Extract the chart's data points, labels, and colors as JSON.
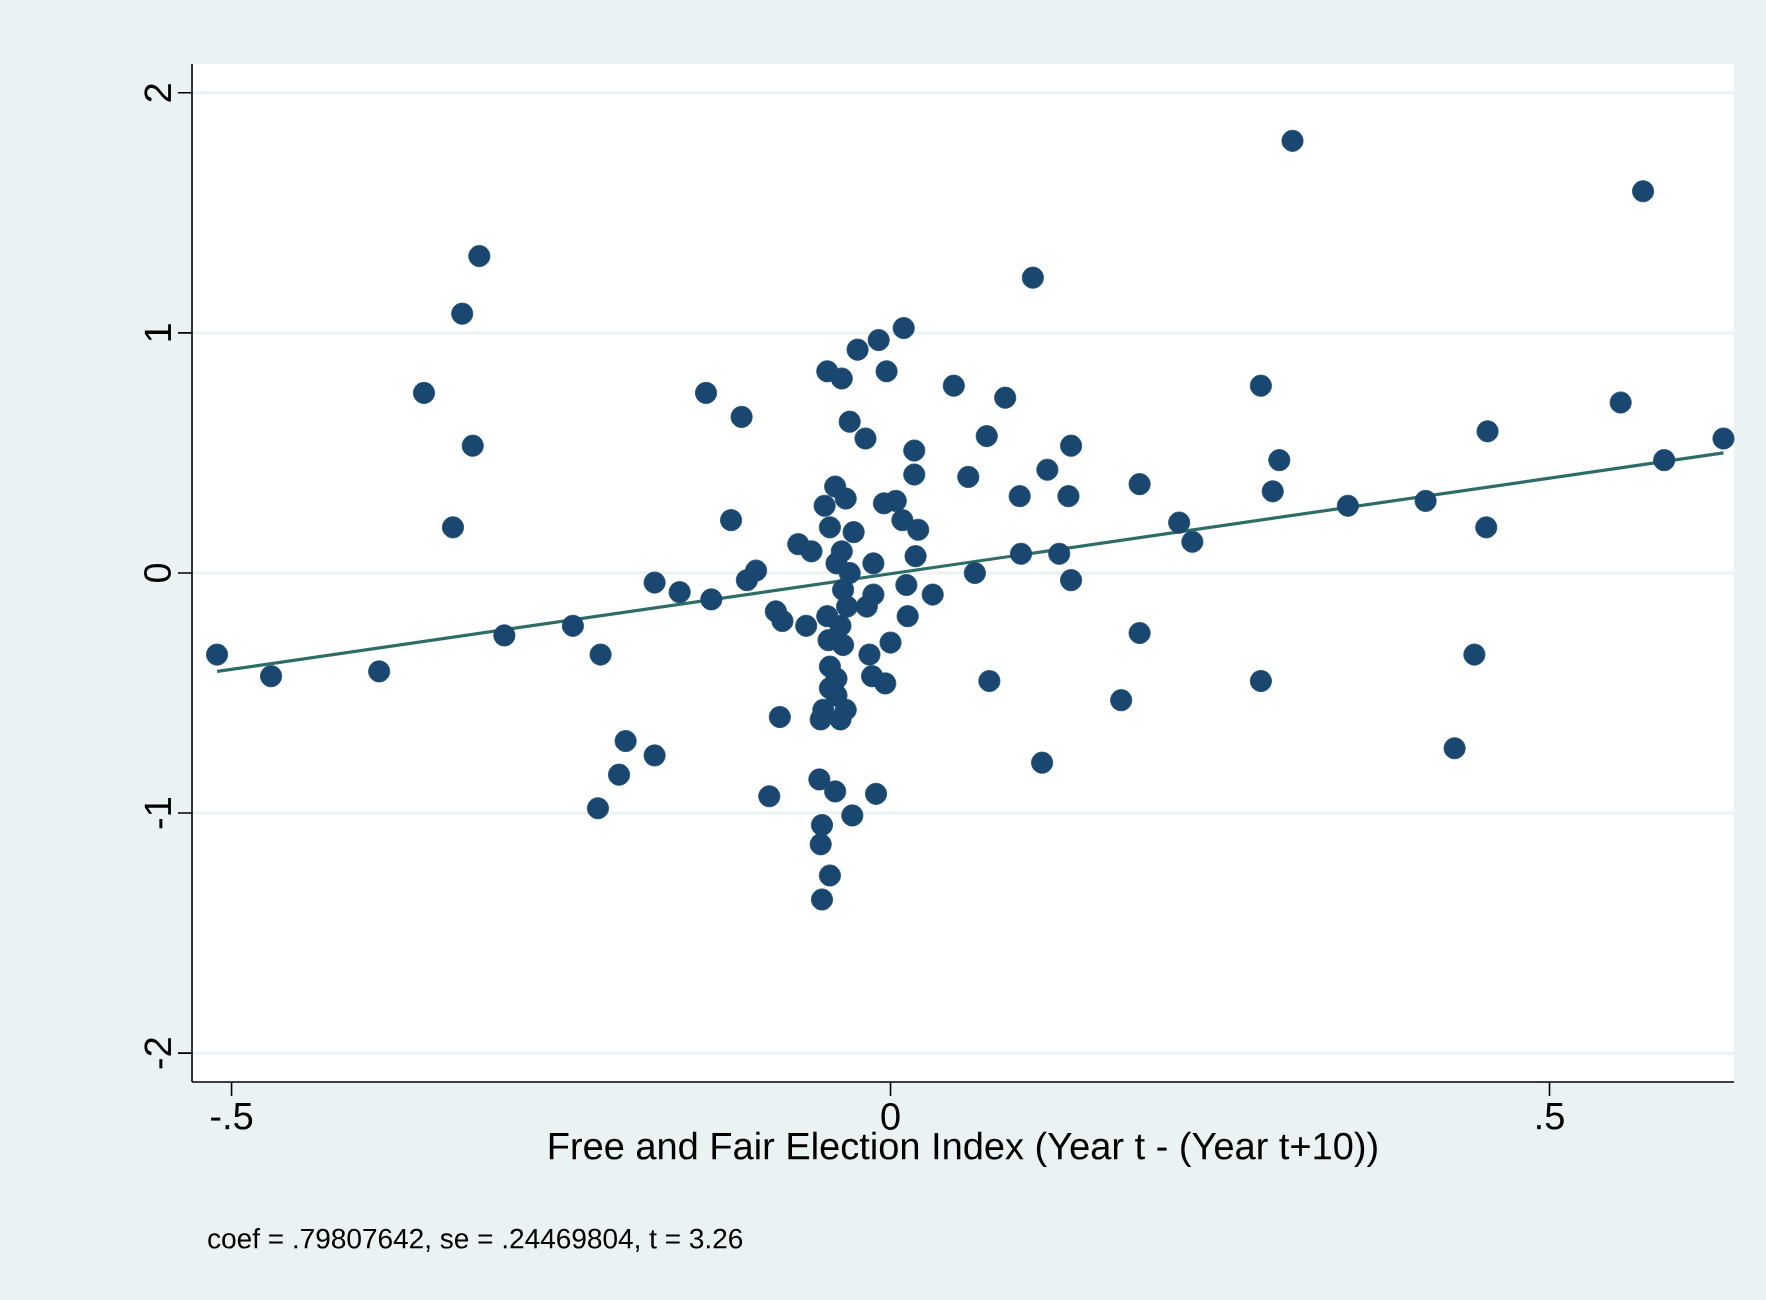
{
  "chart_data": {
    "type": "scatter",
    "xlabel": "Free and Fair Election Index (Year t - (Year t+10))",
    "annotations": [
      "coef = .79807642, se = .24469804, t = 3.26"
    ],
    "xlim": [
      -0.53,
      0.64
    ],
    "ylim": [
      -2.12,
      2.12
    ],
    "xticks": [
      {
        "value": -0.5,
        "label": "-.5"
      },
      0,
      {
        "value": 0.5,
        "label": ".5"
      }
    ],
    "yticks": [
      -2,
      -1,
      0,
      1,
      2
    ],
    "grid": "y",
    "marker": "circle",
    "series": [
      {
        "color": "#1a476f",
        "x": [
          -0.511,
          -0.47,
          -0.388,
          -0.312,
          -0.325,
          -0.354,
          -0.317,
          -0.332,
          -0.293,
          -0.241,
          -0.22,
          -0.201,
          -0.206,
          -0.179,
          -0.222,
          -0.14,
          -0.113,
          -0.121,
          -0.179,
          -0.16,
          -0.136,
          -0.109,
          -0.102,
          -0.087,
          -0.092,
          -0.084,
          0.108,
          0.01,
          -0.009,
          -0.025,
          -0.048,
          -0.037,
          -0.003,
          0.048,
          0.087,
          -0.031,
          -0.019,
          0.073,
          0.018,
          0.137,
          0.018,
          0.059,
          0.119,
          0.098,
          0.135,
          -0.042,
          -0.034,
          -0.05,
          -0.005,
          0.004,
          -0.046,
          -0.028,
          0.009,
          0.021,
          0.019,
          -0.07,
          -0.06,
          -0.037,
          -0.041,
          -0.013,
          -0.031,
          0.099,
          0.128,
          0.064,
          0.137,
          0.012,
          0.032,
          -0.013,
          -0.018,
          -0.036,
          -0.033,
          -0.082,
          -0.064,
          -0.048,
          -0.038,
          0.013,
          -0.047,
          -0.036,
          0.0,
          -0.046,
          -0.016,
          -0.014,
          -0.004,
          -0.041,
          -0.046,
          -0.041,
          -0.051,
          -0.034,
          -0.053,
          -0.038,
          0.075,
          0.175,
          0.115,
          -0.054,
          -0.042,
          -0.011,
          -0.029,
          -0.052,
          -0.053,
          -0.046,
          -0.052,
          0.305,
          0.571,
          0.281,
          0.554,
          0.453,
          0.632,
          0.295,
          0.587,
          0.29,
          0.189,
          0.219,
          0.229,
          0.347,
          0.406,
          0.452,
          0.189,
          0.281,
          0.443,
          0.428
        ],
        "values": [
          -0.34,
          -0.43,
          -0.41,
          1.32,
          1.08,
          0.75,
          0.53,
          0.19,
          -0.26,
          -0.22,
          -0.34,
          -0.7,
          -0.84,
          -0.76,
          -0.98,
          0.75,
          0.65,
          0.22,
          -0.04,
          -0.08,
          -0.11,
          -0.03,
          0.01,
          -0.16,
          -0.93,
          -0.6,
          1.23,
          1.02,
          0.97,
          0.93,
          0.84,
          0.81,
          0.84,
          0.78,
          0.73,
          0.63,
          0.56,
          0.57,
          0.51,
          0.53,
          0.41,
          0.4,
          0.43,
          0.32,
          0.32,
          0.36,
          0.31,
          0.28,
          0.29,
          0.3,
          0.19,
          0.17,
          0.22,
          0.18,
          0.07,
          0.12,
          0.09,
          0.09,
          0.04,
          0.04,
          0.0,
          0.08,
          0.08,
          0.0,
          -0.03,
          -0.05,
          -0.09,
          -0.09,
          -0.14,
          -0.07,
          -0.14,
          -0.2,
          -0.22,
          -0.18,
          -0.22,
          -0.18,
          -0.28,
          -0.3,
          -0.29,
          -0.39,
          -0.34,
          -0.43,
          -0.46,
          -0.44,
          -0.48,
          -0.51,
          -0.57,
          -0.57,
          -0.61,
          -0.61,
          -0.45,
          -0.53,
          -0.79,
          -0.86,
          -0.91,
          -0.92,
          -1.01,
          -1.05,
          -1.13,
          -1.26,
          -1.36,
          1.8,
          1.59,
          0.78,
          0.71,
          0.59,
          0.56,
          0.47,
          0.47,
          0.34,
          0.37,
          0.21,
          0.13,
          0.28,
          0.3,
          0.19,
          -0.25,
          -0.45,
          -0.34,
          -0.73
        ]
      },
      {
        "type": "line",
        "marker": "none",
        "color": "#2d6d66",
        "x": [
          -0.511,
          0.632
        ],
        "values": [
          -0.41,
          0.5
        ]
      }
    ]
  }
}
